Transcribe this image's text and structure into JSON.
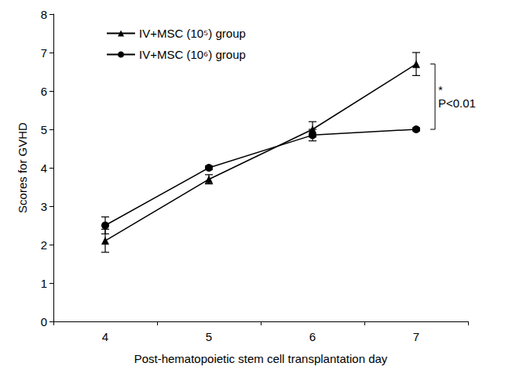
{
  "chart_data": {
    "type": "line",
    "x_label": "Post-hematopoietic stem cell transplantation day",
    "y_label": "Scores for GVHD",
    "categories": [
      "4",
      "5",
      "6",
      "7"
    ],
    "series": [
      {
        "name": "IV+MSC (10⁵) group",
        "color": "#000000",
        "marker": "triangle",
        "line_style": "solid",
        "values": [
          2.1,
          3.7,
          5.0,
          6.7
        ],
        "errors": [
          0.3,
          0.12,
          0.2,
          0.3
        ]
      },
      {
        "name": "IV+MSC (10⁶) group",
        "color": "#000000",
        "marker": "circle",
        "line_style": "solid",
        "values": [
          2.5,
          4.0,
          4.85,
          5.0
        ],
        "errors": [
          0.22,
          0.05,
          0.15,
          0.04
        ]
      }
    ],
    "ylim": [
      0,
      8
    ],
    "yticks": [
      0,
      1,
      2,
      3,
      4,
      5,
      6,
      7,
      8
    ],
    "grid": false,
    "legend": "upper left",
    "annotations": [
      "*",
      "P<0.01"
    ]
  }
}
